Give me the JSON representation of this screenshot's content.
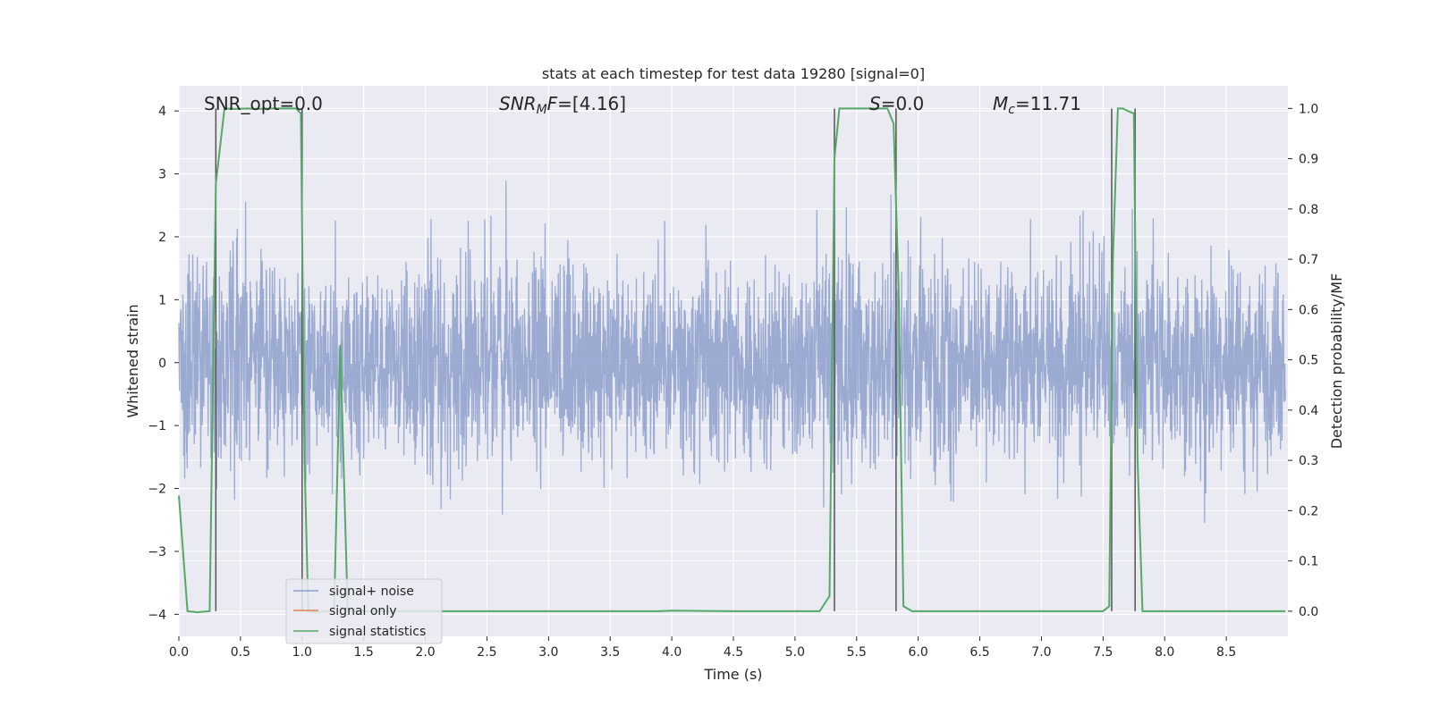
{
  "chart_data": {
    "type": "line",
    "title": "stats at each timestep for test data 19280 [signal=0]",
    "xlabel": "Time (s)",
    "ylabel_left": "Whitened strain",
    "ylabel_right": "Detection probability/MF",
    "xlim": [
      0.0,
      9.0
    ],
    "ylim_left": [
      -4.35,
      4.4
    ],
    "ylim_right": [
      -0.05,
      1.045
    ],
    "x_ticks": [
      "0.0",
      "0.5",
      "1.0",
      "1.5",
      "2.0",
      "2.5",
      "3.0",
      "3.5",
      "4.0",
      "4.5",
      "5.0",
      "5.5",
      "6.0",
      "6.5",
      "7.0",
      "7.5",
      "8.0",
      "8.5"
    ],
    "y_ticks_left": [
      "−4",
      "−3",
      "−2",
      "−1",
      "0",
      "1",
      "2",
      "3",
      "4"
    ],
    "y_ticks_right": [
      "0.0",
      "0.1",
      "0.2",
      "0.3",
      "0.4",
      "0.5",
      "0.6",
      "0.7",
      "0.8",
      "0.9",
      "1.0"
    ],
    "annotations": {
      "snr_opt": "SNR_opt=0.0",
      "snr_mf": "=[4.16]",
      "snr_mf_base": "SNR",
      "snr_mf_sub": "M",
      "snr_mf_tail": "F",
      "s_base": "S",
      "s_value": "=0.0",
      "mc_base": "M",
      "mc_sub": "c",
      "mc_value": "=11.71"
    },
    "series": [
      {
        "name": "signal+ noise",
        "color": "#8c9fcb",
        "noise_std": 0.8,
        "samples": 3600
      },
      {
        "name": "signal only",
        "color": "#dd8452",
        "values": []
      },
      {
        "name": "signal statistics",
        "color": "#55a868",
        "x": [
          0.0,
          0.07,
          0.15,
          0.25,
          0.3,
          0.37,
          0.45,
          0.55,
          0.65,
          0.75,
          0.85,
          0.95,
          0.99,
          1.02,
          1.05,
          1.1,
          1.2,
          1.26,
          1.31,
          1.37,
          1.42,
          1.5,
          2.0,
          3.0,
          3.9,
          4.0,
          4.5,
          5.0,
          5.2,
          5.28,
          5.32,
          5.36,
          5.45,
          5.55,
          5.65,
          5.75,
          5.8,
          5.84,
          5.88,
          5.95,
          6.0,
          6.5,
          7.0,
          7.5,
          7.55,
          7.58,
          7.62,
          7.66,
          7.7,
          7.75,
          7.78,
          7.82,
          8.0,
          8.5,
          8.98
        ],
        "y": [
          0.23,
          0.0,
          -0.002,
          0.0,
          0.85,
          1.0,
          0.999,
          1.0,
          0.999,
          1.0,
          1.0,
          1.0,
          0.99,
          0.3,
          0.0,
          -0.002,
          0.0,
          0.0,
          0.53,
          0.0,
          0.0,
          0.0,
          0.0,
          0.0,
          0.0,
          0.001,
          0.0,
          0.0,
          0.0,
          0.03,
          0.9,
          1.0,
          1.0,
          1.0,
          1.0,
          1.0,
          0.97,
          0.65,
          0.01,
          0.0,
          0.0,
          0.0,
          0.0,
          0.0,
          0.01,
          0.7,
          1.0,
          1.0,
          0.995,
          0.99,
          0.3,
          0.0,
          0.0,
          0.0,
          0.0
        ]
      }
    ],
    "vertical_lines_x": [
      0.3,
      1.0,
      5.32,
      5.82,
      7.57,
      7.76
    ],
    "vertical_lines_color": "#555555",
    "grid": true,
    "legend_placement": "lower-left",
    "colors": {
      "axes_bg": "#eaeaf2",
      "grid": "#ffffff",
      "text": "#262626"
    }
  }
}
